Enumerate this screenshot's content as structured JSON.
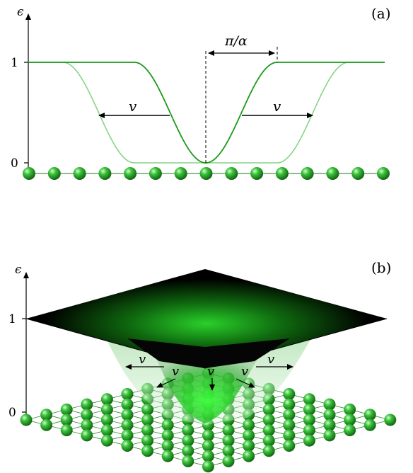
{
  "panel_a": {
    "label": "(a)",
    "y_axis_symbol": "ϵ",
    "tick_one": "1",
    "tick_zero": "0",
    "width_label": "π/α",
    "velocity_left": "v",
    "velocity_right": "v",
    "atom_count": 15,
    "colors": {
      "curve_dark": "#1a9a1a",
      "curve_light": "#86d486",
      "atom": "#1f9a1f"
    }
  },
  "panel_b": {
    "label": "(b)",
    "y_axis_symbol": "ϵ",
    "tick_one": "1",
    "tick_zero": "0",
    "velocity_labels": [
      "v",
      "v",
      "v",
      "v",
      "v"
    ],
    "lattice_size": "10x10",
    "colors": {
      "surface_top": "#000000",
      "well_glow": "#22cc22",
      "atom": "#1f9a1f"
    }
  }
}
